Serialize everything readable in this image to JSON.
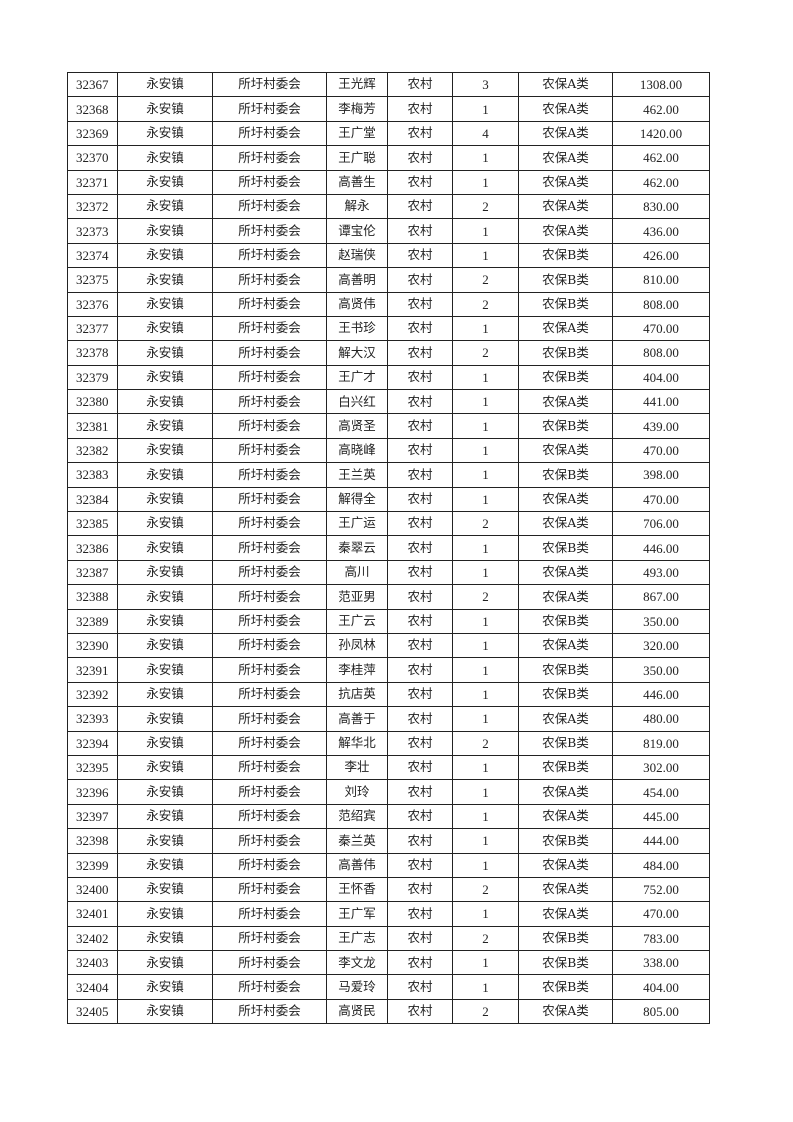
{
  "table": {
    "rows": [
      [
        "32367",
        "永安镇",
        "所圩村委会",
        "王光辉",
        "农村",
        "3",
        "农保A类",
        "1308.00"
      ],
      [
        "32368",
        "永安镇",
        "所圩村委会",
        "李梅芳",
        "农村",
        "1",
        "农保A类",
        "462.00"
      ],
      [
        "32369",
        "永安镇",
        "所圩村委会",
        "王广堂",
        "农村",
        "4",
        "农保A类",
        "1420.00"
      ],
      [
        "32370",
        "永安镇",
        "所圩村委会",
        "王广聪",
        "农村",
        "1",
        "农保A类",
        "462.00"
      ],
      [
        "32371",
        "永安镇",
        "所圩村委会",
        "高善生",
        "农村",
        "1",
        "农保A类",
        "462.00"
      ],
      [
        "32372",
        "永安镇",
        "所圩村委会",
        "解永",
        "农村",
        "2",
        "农保A类",
        "830.00"
      ],
      [
        "32373",
        "永安镇",
        "所圩村委会",
        "谭宝伦",
        "农村",
        "1",
        "农保A类",
        "436.00"
      ],
      [
        "32374",
        "永安镇",
        "所圩村委会",
        "赵瑞侠",
        "农村",
        "1",
        "农保B类",
        "426.00"
      ],
      [
        "32375",
        "永安镇",
        "所圩村委会",
        "高善明",
        "农村",
        "2",
        "农保B类",
        "810.00"
      ],
      [
        "32376",
        "永安镇",
        "所圩村委会",
        "高贤伟",
        "农村",
        "2",
        "农保B类",
        "808.00"
      ],
      [
        "32377",
        "永安镇",
        "所圩村委会",
        "王书珍",
        "农村",
        "1",
        "农保A类",
        "470.00"
      ],
      [
        "32378",
        "永安镇",
        "所圩村委会",
        "解大汉",
        "农村",
        "2",
        "农保B类",
        "808.00"
      ],
      [
        "32379",
        "永安镇",
        "所圩村委会",
        "王广才",
        "农村",
        "1",
        "农保B类",
        "404.00"
      ],
      [
        "32380",
        "永安镇",
        "所圩村委会",
        "白兴红",
        "农村",
        "1",
        "农保A类",
        "441.00"
      ],
      [
        "32381",
        "永安镇",
        "所圩村委会",
        "高贤圣",
        "农村",
        "1",
        "农保B类",
        "439.00"
      ],
      [
        "32382",
        "永安镇",
        "所圩村委会",
        "高晓峰",
        "农村",
        "1",
        "农保A类",
        "470.00"
      ],
      [
        "32383",
        "永安镇",
        "所圩村委会",
        "王兰英",
        "农村",
        "1",
        "农保B类",
        "398.00"
      ],
      [
        "32384",
        "永安镇",
        "所圩村委会",
        "解得全",
        "农村",
        "1",
        "农保A类",
        "470.00"
      ],
      [
        "32385",
        "永安镇",
        "所圩村委会",
        "王广运",
        "农村",
        "2",
        "农保A类",
        "706.00"
      ],
      [
        "32386",
        "永安镇",
        "所圩村委会",
        "秦翠云",
        "农村",
        "1",
        "农保B类",
        "446.00"
      ],
      [
        "32387",
        "永安镇",
        "所圩村委会",
        "高川",
        "农村",
        "1",
        "农保A类",
        "493.00"
      ],
      [
        "32388",
        "永安镇",
        "所圩村委会",
        "范亚男",
        "农村",
        "2",
        "农保A类",
        "867.00"
      ],
      [
        "32389",
        "永安镇",
        "所圩村委会",
        "王广云",
        "农村",
        "1",
        "农保B类",
        "350.00"
      ],
      [
        "32390",
        "永安镇",
        "所圩村委会",
        "孙凤林",
        "农村",
        "1",
        "农保A类",
        "320.00"
      ],
      [
        "32391",
        "永安镇",
        "所圩村委会",
        "李桂萍",
        "农村",
        "1",
        "农保B类",
        "350.00"
      ],
      [
        "32392",
        "永安镇",
        "所圩村委会",
        "抗店英",
        "农村",
        "1",
        "农保B类",
        "446.00"
      ],
      [
        "32393",
        "永安镇",
        "所圩村委会",
        "高善于",
        "农村",
        "1",
        "农保A类",
        "480.00"
      ],
      [
        "32394",
        "永安镇",
        "所圩村委会",
        "解华北",
        "农村",
        "2",
        "农保B类",
        "819.00"
      ],
      [
        "32395",
        "永安镇",
        "所圩村委会",
        "李壮",
        "农村",
        "1",
        "农保B类",
        "302.00"
      ],
      [
        "32396",
        "永安镇",
        "所圩村委会",
        "刘玲",
        "农村",
        "1",
        "农保A类",
        "454.00"
      ],
      [
        "32397",
        "永安镇",
        "所圩村委会",
        "范绍宾",
        "农村",
        "1",
        "农保A类",
        "445.00"
      ],
      [
        "32398",
        "永安镇",
        "所圩村委会",
        "秦兰英",
        "农村",
        "1",
        "农保B类",
        "444.00"
      ],
      [
        "32399",
        "永安镇",
        "所圩村委会",
        "高善伟",
        "农村",
        "1",
        "农保A类",
        "484.00"
      ],
      [
        "32400",
        "永安镇",
        "所圩村委会",
        "王怀香",
        "农村",
        "2",
        "农保A类",
        "752.00"
      ],
      [
        "32401",
        "永安镇",
        "所圩村委会",
        "王广军",
        "农村",
        "1",
        "农保A类",
        "470.00"
      ],
      [
        "32402",
        "永安镇",
        "所圩村委会",
        "王广志",
        "农村",
        "2",
        "农保B类",
        "783.00"
      ],
      [
        "32403",
        "永安镇",
        "所圩村委会",
        "李文龙",
        "农村",
        "1",
        "农保B类",
        "338.00"
      ],
      [
        "32404",
        "永安镇",
        "所圩村委会",
        "马爱玲",
        "农村",
        "1",
        "农保B类",
        "404.00"
      ],
      [
        "32405",
        "永安镇",
        "所圩村委会",
        "高贤民",
        "农村",
        "2",
        "农保A类",
        "805.00"
      ]
    ]
  }
}
